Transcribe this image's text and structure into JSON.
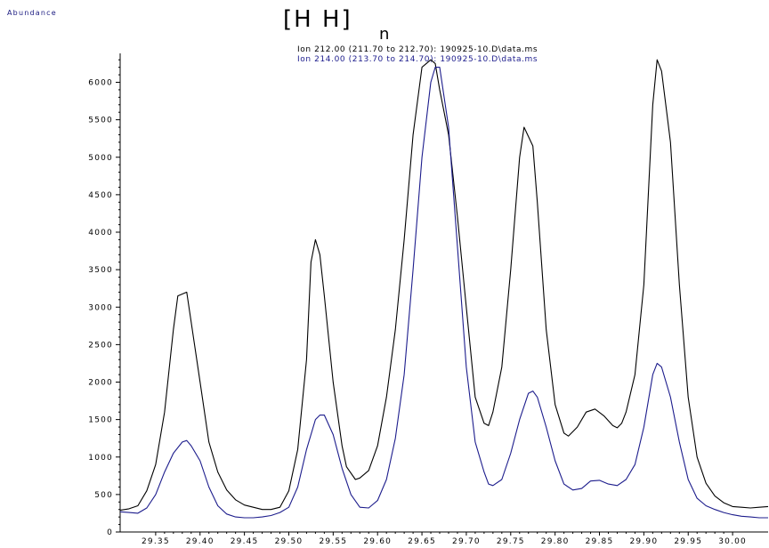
{
  "header": {
    "title_text": "[H   H]",
    "title_subscript": "n",
    "ylabel": "Abundance"
  },
  "chart_data": {
    "type": "line",
    "ylabel": "Abundance",
    "xlabel": "",
    "xlim": [
      29.31,
      30.04
    ],
    "ylim": [
      0,
      6400
    ],
    "x_ticks": [
      "29.35",
      "29.40",
      "29.45",
      "29.50",
      "29.55",
      "29.60",
      "29.65",
      "29.70",
      "29.75",
      "29.80",
      "29.85",
      "29.90",
      "29.95",
      "30.00"
    ],
    "y_ticks": [
      "0",
      "500",
      "1000",
      "1500",
      "2000",
      "2500",
      "3000",
      "3500",
      "4000",
      "4500",
      "5000",
      "5500",
      "6000"
    ],
    "series": [
      {
        "name": "Ion 212.00 (211.70 to 212.70): 190925-10.D\\data.ms",
        "color": "#000000",
        "points": [
          [
            29.31,
            290
          ],
          [
            29.32,
            310
          ],
          [
            29.33,
            350
          ],
          [
            29.34,
            550
          ],
          [
            29.35,
            900
          ],
          [
            29.36,
            1600
          ],
          [
            29.37,
            2700
          ],
          [
            29.375,
            3150
          ],
          [
            29.385,
            3200
          ],
          [
            29.39,
            2800
          ],
          [
            29.4,
            2000
          ],
          [
            29.41,
            1200
          ],
          [
            29.42,
            800
          ],
          [
            29.43,
            560
          ],
          [
            29.44,
            430
          ],
          [
            29.45,
            360
          ],
          [
            29.46,
            330
          ],
          [
            29.47,
            300
          ],
          [
            29.48,
            300
          ],
          [
            29.49,
            330
          ],
          [
            29.5,
            550
          ],
          [
            29.51,
            1100
          ],
          [
            29.52,
            2300
          ],
          [
            29.525,
            3600
          ],
          [
            29.53,
            3900
          ],
          [
            29.535,
            3700
          ],
          [
            29.54,
            3150
          ],
          [
            29.55,
            2000
          ],
          [
            29.56,
            1150
          ],
          [
            29.565,
            870
          ],
          [
            29.575,
            700
          ],
          [
            29.58,
            720
          ],
          [
            29.59,
            820
          ],
          [
            29.6,
            1150
          ],
          [
            29.61,
            1800
          ],
          [
            29.62,
            2700
          ],
          [
            29.63,
            3900
          ],
          [
            29.64,
            5300
          ],
          [
            29.65,
            6200
          ],
          [
            29.66,
            6300
          ],
          [
            29.665,
            6250
          ],
          [
            29.67,
            5900
          ],
          [
            29.68,
            5300
          ],
          [
            29.69,
            4200
          ],
          [
            29.7,
            3000
          ],
          [
            29.71,
            1800
          ],
          [
            29.72,
            1450
          ],
          [
            29.725,
            1420
          ],
          [
            29.73,
            1600
          ],
          [
            29.74,
            2200
          ],
          [
            29.75,
            3500
          ],
          [
            29.76,
            5000
          ],
          [
            29.765,
            5400
          ],
          [
            29.775,
            5150
          ],
          [
            29.78,
            4400
          ],
          [
            29.79,
            2700
          ],
          [
            29.8,
            1700
          ],
          [
            29.81,
            1320
          ],
          [
            29.815,
            1280
          ],
          [
            29.825,
            1400
          ],
          [
            29.835,
            1600
          ],
          [
            29.845,
            1640
          ],
          [
            29.855,
            1550
          ],
          [
            29.865,
            1420
          ],
          [
            29.87,
            1390
          ],
          [
            29.875,
            1450
          ],
          [
            29.88,
            1600
          ],
          [
            29.89,
            2100
          ],
          [
            29.9,
            3300
          ],
          [
            29.91,
            5700
          ],
          [
            29.915,
            6300
          ],
          [
            29.92,
            6150
          ],
          [
            29.93,
            5200
          ],
          [
            29.94,
            3300
          ],
          [
            29.95,
            1800
          ],
          [
            29.96,
            1000
          ],
          [
            29.97,
            650
          ],
          [
            29.98,
            480
          ],
          [
            29.99,
            390
          ],
          [
            30.0,
            340
          ],
          [
            30.01,
            330
          ],
          [
            30.02,
            320
          ],
          [
            30.03,
            330
          ],
          [
            30.04,
            340
          ]
        ]
      },
      {
        "name": "Ion 214.00 (213.70 to 214.70): 190925-10.D\\data.ms",
        "color": "#1c1c8c",
        "points": [
          [
            29.31,
            270
          ],
          [
            29.32,
            260
          ],
          [
            29.33,
            250
          ],
          [
            29.34,
            320
          ],
          [
            29.35,
            500
          ],
          [
            29.36,
            800
          ],
          [
            29.37,
            1050
          ],
          [
            29.38,
            1200
          ],
          [
            29.385,
            1220
          ],
          [
            29.39,
            1150
          ],
          [
            29.4,
            950
          ],
          [
            29.41,
            600
          ],
          [
            29.42,
            350
          ],
          [
            29.43,
            240
          ],
          [
            29.44,
            200
          ],
          [
            29.45,
            190
          ],
          [
            29.46,
            190
          ],
          [
            29.47,
            200
          ],
          [
            29.48,
            220
          ],
          [
            29.49,
            260
          ],
          [
            29.5,
            330
          ],
          [
            29.51,
            600
          ],
          [
            29.52,
            1100
          ],
          [
            29.53,
            1500
          ],
          [
            29.535,
            1560
          ],
          [
            29.54,
            1560
          ],
          [
            29.55,
            1300
          ],
          [
            29.56,
            850
          ],
          [
            29.57,
            500
          ],
          [
            29.58,
            330
          ],
          [
            29.59,
            320
          ],
          [
            29.6,
            420
          ],
          [
            29.61,
            700
          ],
          [
            29.62,
            1250
          ],
          [
            29.63,
            2100
          ],
          [
            29.64,
            3500
          ],
          [
            29.65,
            5000
          ],
          [
            29.66,
            6000
          ],
          [
            29.665,
            6200
          ],
          [
            29.67,
            6200
          ],
          [
            29.68,
            5400
          ],
          [
            29.69,
            3800
          ],
          [
            29.7,
            2200
          ],
          [
            29.71,
            1200
          ],
          [
            29.72,
            800
          ],
          [
            29.725,
            640
          ],
          [
            29.73,
            620
          ],
          [
            29.74,
            700
          ],
          [
            29.75,
            1050
          ],
          [
            29.76,
            1500
          ],
          [
            29.77,
            1850
          ],
          [
            29.775,
            1880
          ],
          [
            29.78,
            1800
          ],
          [
            29.79,
            1400
          ],
          [
            29.8,
            950
          ],
          [
            29.81,
            640
          ],
          [
            29.82,
            560
          ],
          [
            29.83,
            580
          ],
          [
            29.84,
            680
          ],
          [
            29.85,
            690
          ],
          [
            29.86,
            640
          ],
          [
            29.87,
            620
          ],
          [
            29.88,
            700
          ],
          [
            29.89,
            900
          ],
          [
            29.9,
            1400
          ],
          [
            29.91,
            2100
          ],
          [
            29.915,
            2250
          ],
          [
            29.92,
            2200
          ],
          [
            29.93,
            1800
          ],
          [
            29.94,
            1200
          ],
          [
            29.95,
            700
          ],
          [
            29.96,
            450
          ],
          [
            29.97,
            350
          ],
          [
            29.98,
            300
          ],
          [
            29.99,
            260
          ],
          [
            30.0,
            230
          ],
          [
            30.01,
            210
          ],
          [
            30.02,
            200
          ],
          [
            30.03,
            190
          ],
          [
            30.04,
            190
          ]
        ]
      }
    ]
  }
}
